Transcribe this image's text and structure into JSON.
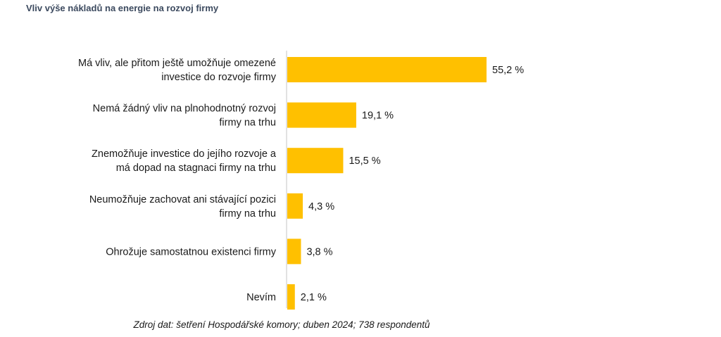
{
  "title": "Vliv výše nákladů na energie na rozvoj firmy",
  "source": "Zdroj dat: šetření Hospodářské komory; duben 2024; 738 respondentů",
  "chart_data": {
    "type": "bar",
    "orientation": "horizontal",
    "title": "Vliv výše nákladů na energie na rozvoj firmy",
    "categories": [
      [
        "Má vliv, ale přitom ještě umožňuje omezené",
        "investice do rozvoje firmy"
      ],
      [
        "Nemá žádný vliv na plnohodnotný rozvoj",
        "firmy na trhu"
      ],
      [
        "Znemožňuje investice do jejího rozvoje a",
        "má dopad na stagnaci firmy na trhu"
      ],
      [
        "Neumožňuje zachovat ani stávající pozici",
        "firmy na trhu"
      ],
      [
        "Ohrožuje samostatnou existenci firmy"
      ],
      [
        "Nevím"
      ]
    ],
    "values": [
      55.2,
      19.1,
      15.5,
      4.3,
      3.8,
      2.1
    ],
    "value_labels": [
      "55,2 %",
      "19,1 %",
      "15,5 %",
      "4,3 %",
      "3,8 %",
      "2,1 %"
    ],
    "xlim": [
      0,
      55.2
    ],
    "grid": false,
    "bar_color": "#ffc000",
    "axis_color": "#d9d9d9"
  }
}
